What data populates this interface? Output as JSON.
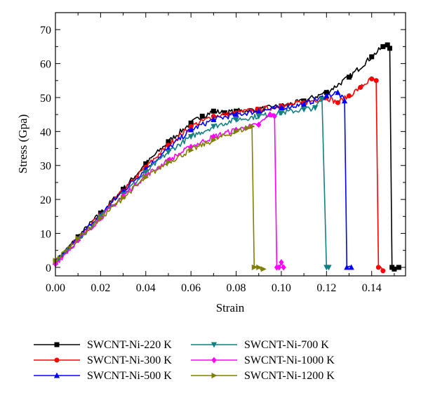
{
  "chart_data": {
    "type": "line",
    "xlabel": "Strain",
    "ylabel": "Stress (Gpa)",
    "xlim": [
      0,
      0.155
    ],
    "ylim": [
      -2.5,
      75
    ],
    "xticks": [
      "0.00",
      "0.02",
      "0.04",
      "0.06",
      "0.08",
      "0.10",
      "0.12",
      "0.14"
    ],
    "yticks": [
      "0",
      "10",
      "20",
      "30",
      "40",
      "50",
      "60",
      "70"
    ],
    "grid": false,
    "legend_position": "bottom",
    "series": [
      {
        "name": "SWCNT-Ni-220 K",
        "color": "#000000",
        "marker": "square",
        "x": [
          0,
          0.01,
          0.02,
          0.03,
          0.04,
          0.05,
          0.06,
          0.065,
          0.07,
          0.075,
          0.08,
          0.09,
          0.1,
          0.11,
          0.12,
          0.13,
          0.14,
          0.145,
          0.147,
          0.148,
          0.149,
          0.15,
          0.152
        ],
        "y": [
          1.5,
          9,
          16,
          23,
          30.5,
          37,
          42.5,
          44.5,
          46,
          45.5,
          46,
          46.5,
          47.5,
          49,
          51.5,
          56,
          62,
          65,
          65.5,
          64.5,
          0,
          -0.5,
          0
        ]
      },
      {
        "name": "SWCNT-Ni-300 K",
        "color": "#ff0000",
        "marker": "circle",
        "x": [
          0,
          0.01,
          0.02,
          0.03,
          0.04,
          0.05,
          0.06,
          0.07,
          0.08,
          0.09,
          0.1,
          0.11,
          0.12,
          0.125,
          0.13,
          0.135,
          0.14,
          0.142,
          0.143,
          0.145
        ],
        "y": [
          1.5,
          8.5,
          15.5,
          22.5,
          29.5,
          36,
          41.5,
          44.5,
          45.5,
          46.5,
          47.5,
          48.5,
          50,
          48.5,
          50.5,
          53,
          55.5,
          55,
          0,
          -1
        ]
      },
      {
        "name": "SWCNT-Ni-500 K",
        "color": "#0000ff",
        "marker": "triangle-up",
        "x": [
          0,
          0.01,
          0.02,
          0.03,
          0.04,
          0.05,
          0.06,
          0.07,
          0.08,
          0.09,
          0.1,
          0.11,
          0.12,
          0.125,
          0.128,
          0.129,
          0.131
        ],
        "y": [
          1.5,
          8.5,
          15.5,
          22.5,
          29,
          35,
          40.5,
          43.5,
          45,
          46,
          47,
          48,
          50.5,
          51.5,
          49,
          0,
          0
        ]
      },
      {
        "name": "SWCNT-Ni-700 K",
        "color": "#118080",
        "marker": "triangle-down",
        "x": [
          0,
          0.01,
          0.02,
          0.03,
          0.04,
          0.05,
          0.06,
          0.07,
          0.08,
          0.09,
          0.1,
          0.11,
          0.115,
          0.118,
          0.12,
          0.121
        ],
        "y": [
          1.5,
          8,
          15,
          21.5,
          28,
          34,
          38.5,
          41.5,
          43.5,
          44.5,
          45.5,
          46.5,
          47,
          49.5,
          0,
          0
        ]
      },
      {
        "name": "SWCNT-Ni-1000 K",
        "color": "#ff00ff",
        "marker": "diamond",
        "x": [
          0,
          0.01,
          0.02,
          0.03,
          0.04,
          0.05,
          0.06,
          0.07,
          0.08,
          0.09,
          0.095,
          0.097,
          0.098,
          0.099,
          0.1,
          0.101
        ],
        "y": [
          1,
          8,
          14.5,
          21,
          27,
          31.5,
          35.5,
          38.5,
          40.5,
          42,
          45,
          44.5,
          0,
          0,
          1.5,
          0
        ]
      },
      {
        "name": "SWCNT-Ni-1200 K",
        "color": "#808000",
        "marker": "triangle-right",
        "x": [
          0,
          0.01,
          0.02,
          0.03,
          0.04,
          0.05,
          0.06,
          0.07,
          0.08,
          0.085,
          0.087,
          0.088,
          0.09,
          0.092
        ],
        "y": [
          2,
          8.5,
          14.5,
          20.5,
          26.5,
          31,
          34.5,
          37.5,
          40,
          41,
          41.5,
          0,
          0,
          -0.5
        ]
      }
    ]
  }
}
